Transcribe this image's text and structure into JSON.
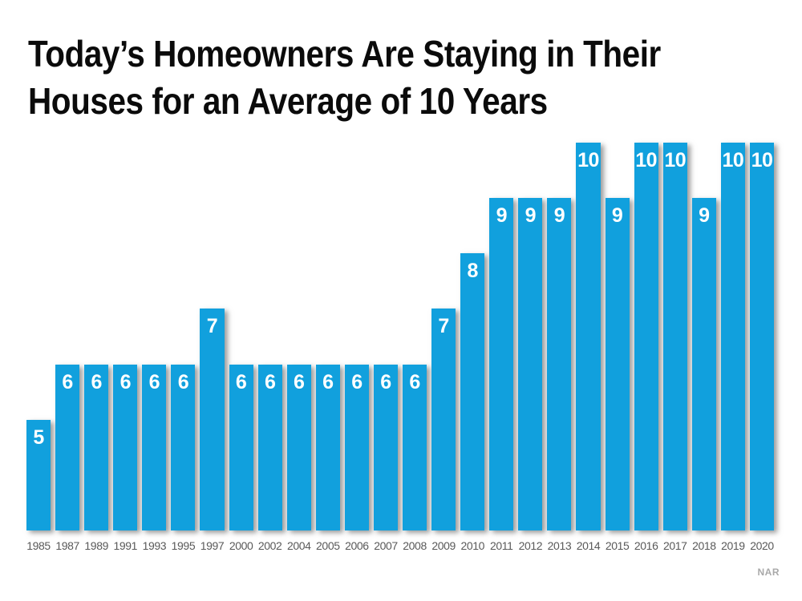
{
  "title": {
    "lines": [
      "Today’s Homeowners Are Staying in Their",
      "Houses for an Average of 10 Years"
    ]
  },
  "source_label": "NAR",
  "colors": {
    "bar": "#11a0dd",
    "bar_label": "#ffffff",
    "year_label": "#595959",
    "title": "#0b0b0b",
    "source": "#a9a9a9",
    "background": "#ffffff"
  },
  "chart_data": {
    "type": "bar",
    "title": "Today’s Homeowners Are Staying in Their Houses for an Average of 10 Years",
    "categories": [
      "1985",
      "1987",
      "1989",
      "1991",
      "1993",
      "1995",
      "1997",
      "2000",
      "2002",
      "2004",
      "2005",
      "2006",
      "2007",
      "2008",
      "2009",
      "2010",
      "2011",
      "2012",
      "2013",
      "2014",
      "2015",
      "2016",
      "2017",
      "2018",
      "2019",
      "2020"
    ],
    "values": [
      5,
      6,
      6,
      6,
      6,
      6,
      7,
      6,
      6,
      6,
      6,
      6,
      6,
      6,
      7,
      8,
      9,
      9,
      9,
      10,
      9,
      10,
      10,
      9,
      10,
      10
    ],
    "xlabel": "",
    "ylabel": "",
    "ylim": [
      3,
      10
    ],
    "grid": false,
    "legend_position": "none",
    "data_labels": "inside-top",
    "source": "NAR"
  }
}
